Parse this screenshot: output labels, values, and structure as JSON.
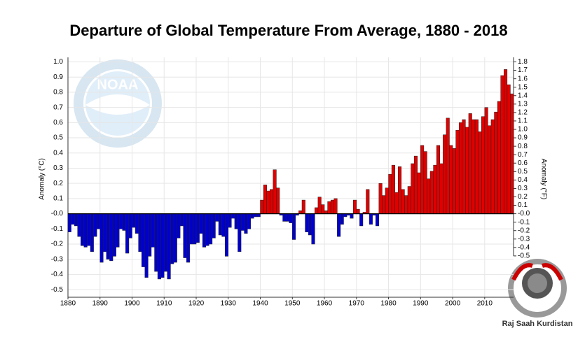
{
  "chart_data": {
    "type": "bar",
    "title": "Departure of Global Temperature From Average, 1880 - 2018",
    "ylabel": "Anomaly (°C)",
    "y2label": "Anomaly (°F)",
    "logo_text": "NOAA",
    "watermark": "Raj Saah Kurdistan",
    "color_positive": "#e00000",
    "color_negative": "#0000cc",
    "grid": true,
    "xlim": [
      1880,
      2019
    ],
    "xticks": [
      1880,
      1890,
      1900,
      1910,
      1920,
      1930,
      1940,
      1950,
      1960,
      1970,
      1980,
      1990,
      2000,
      2010
    ],
    "ylim": [
      -0.55,
      1.03
    ],
    "yticks": [
      {
        "value": 1,
        "label": "1.0"
      },
      0.9,
      0.8,
      0.7,
      0.6,
      0.5,
      0.4,
      0.3,
      0.2,
      0.1,
      {
        "value": 0,
        "label": "-0.0"
      },
      -0.1,
      -0.2,
      -0.3,
      -0.4,
      -0.5
    ],
    "y2lim": [
      -0.99,
      1.854
    ],
    "y2ticks": [
      1.8,
      1.7,
      1.6,
      1.5,
      1.4,
      1.3,
      1.2,
      1.1,
      {
        "value": 1,
        "label": "1.0"
      },
      0.9,
      0.8,
      0.7,
      0.6,
      0.5,
      0.4,
      0.3,
      0.2,
      0.1,
      {
        "value": 0,
        "label": "-0.0"
      },
      -0.1,
      -0.2,
      -0.3,
      -0.4,
      -0.5
    ],
    "x": [
      1880,
      1881,
      1882,
      1883,
      1884,
      1885,
      1886,
      1887,
      1888,
      1889,
      1890,
      1891,
      1892,
      1893,
      1894,
      1895,
      1896,
      1897,
      1898,
      1899,
      1900,
      1901,
      1902,
      1903,
      1904,
      1905,
      1906,
      1907,
      1908,
      1909,
      1910,
      1911,
      1912,
      1913,
      1914,
      1915,
      1916,
      1917,
      1918,
      1919,
      1920,
      1921,
      1922,
      1923,
      1924,
      1925,
      1926,
      1927,
      1928,
      1929,
      1930,
      1931,
      1932,
      1933,
      1934,
      1935,
      1936,
      1937,
      1938,
      1939,
      1940,
      1941,
      1942,
      1943,
      1944,
      1945,
      1946,
      1947,
      1948,
      1949,
      1950,
      1951,
      1952,
      1953,
      1954,
      1955,
      1956,
      1957,
      1958,
      1959,
      1960,
      1961,
      1962,
      1963,
      1964,
      1965,
      1966,
      1967,
      1968,
      1969,
      1970,
      1971,
      1972,
      1973,
      1974,
      1975,
      1976,
      1977,
      1978,
      1979,
      1980,
      1981,
      1982,
      1983,
      1984,
      1985,
      1986,
      1987,
      1988,
      1989,
      1990,
      1991,
      1992,
      1993,
      1994,
      1995,
      1996,
      1997,
      1998,
      1999,
      2000,
      2001,
      2002,
      2003,
      2004,
      2005,
      2006,
      2007,
      2008,
      2009,
      2010,
      2011,
      2012,
      2013,
      2014,
      2015,
      2016,
      2017,
      2018
    ],
    "values": [
      -0.12,
      -0.07,
      -0.08,
      -0.15,
      -0.21,
      -0.22,
      -0.21,
      -0.25,
      -0.15,
      -0.1,
      -0.32,
      -0.25,
      -0.3,
      -0.31,
      -0.28,
      -0.22,
      -0.1,
      -0.11,
      -0.26,
      -0.16,
      -0.09,
      -0.13,
      -0.25,
      -0.35,
      -0.42,
      -0.28,
      -0.22,
      -0.38,
      -0.43,
      -0.42,
      -0.38,
      -0.43,
      -0.33,
      -0.32,
      -0.16,
      -0.08,
      -0.29,
      -0.32,
      -0.2,
      -0.2,
      -0.19,
      -0.13,
      -0.22,
      -0.21,
      -0.2,
      -0.16,
      -0.05,
      -0.14,
      -0.15,
      -0.28,
      -0.09,
      -0.03,
      -0.1,
      -0.25,
      -0.11,
      -0.13,
      -0.1,
      -0.03,
      -0.02,
      -0.02,
      0.09,
      0.19,
      0.15,
      0.16,
      0.29,
      0.17,
      -0.01,
      -0.05,
      -0.05,
      -0.06,
      -0.17,
      -0.01,
      0.02,
      0.09,
      -0.12,
      -0.14,
      -0.2,
      0.04,
      0.11,
      0.06,
      0.02,
      0.08,
      0.09,
      0.1,
      -0.15,
      -0.07,
      -0.02,
      -0.01,
      -0.03,
      0.09,
      0.03,
      -0.08,
      0.01,
      0.16,
      -0.07,
      -0.01,
      -0.08,
      0.2,
      0.12,
      0.17,
      0.26,
      0.32,
      0.14,
      0.31,
      0.16,
      0.12,
      0.18,
      0.33,
      0.38,
      0.27,
      0.45,
      0.41,
      0.23,
      0.28,
      0.32,
      0.45,
      0.33,
      0.52,
      0.63,
      0.45,
      0.43,
      0.55,
      0.6,
      0.62,
      0.57,
      0.66,
      0.62,
      0.62,
      0.54,
      0.64,
      0.7,
      0.58,
      0.62,
      0.67,
      0.74,
      0.91,
      0.95,
      0.85,
      0.79
    ]
  }
}
